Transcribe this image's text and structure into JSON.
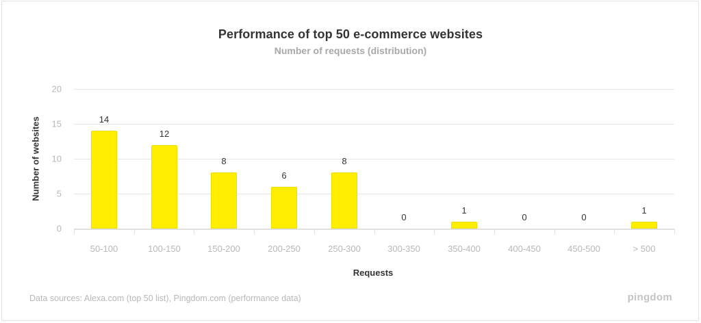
{
  "chart": {
    "title": "Performance of top 50 e-commerce websites",
    "subtitle": "Number of requests (distribution)",
    "ylabel": "Number of websites",
    "xlabel": "Requests",
    "yticks": [
      "20",
      "15",
      "10",
      "5",
      "0"
    ],
    "categories": [
      "50-100",
      "100-150",
      "150-200",
      "200-250",
      "250-300",
      "300-350",
      "350-400",
      "400-450",
      "450-500",
      "> 500"
    ],
    "value_labels": [
      "14",
      "12",
      "8",
      "6",
      "8",
      "0",
      "1",
      "0",
      "0",
      "1"
    ],
    "source": "Data sources: Alexa.com (top 50 list), Pingdom.com (performance data)",
    "brand": "pingdom",
    "bar_color": "#ffee00"
  },
  "chart_data": {
    "type": "bar",
    "title": "Performance of top 50 e-commerce websites",
    "subtitle": "Number of requests (distribution)",
    "xlabel": "Requests",
    "ylabel": "Number of websites",
    "categories": [
      "50-100",
      "100-150",
      "150-200",
      "200-250",
      "250-300",
      "300-350",
      "350-400",
      "400-450",
      "450-500",
      "> 500"
    ],
    "values": [
      14,
      12,
      8,
      6,
      8,
      0,
      1,
      0,
      0,
      1
    ],
    "ylim": [
      0,
      20
    ],
    "yticks": [
      0,
      5,
      10,
      15,
      20
    ],
    "grid": true,
    "legend": null,
    "data_labels": true,
    "annotations": [
      "Data sources: Alexa.com (top 50 list), Pingdom.com (performance data)",
      "pingdom"
    ]
  }
}
